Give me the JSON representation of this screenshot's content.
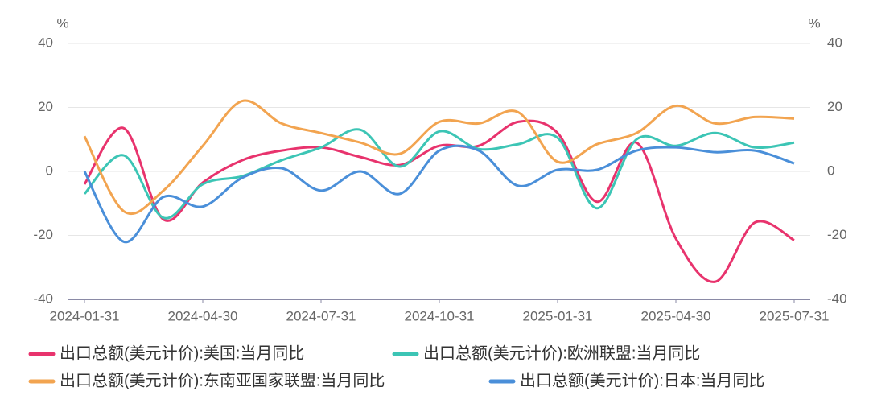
{
  "chart_data": {
    "type": "line",
    "y_unit": "%",
    "y2_unit": "%",
    "categories": [
      "2024-01-31",
      null,
      null,
      "2024-04-30",
      null,
      null,
      "2024-07-31",
      null,
      null,
      "2024-10-31",
      null,
      null,
      "2025-01-31",
      null,
      null,
      "2025-04-30",
      null,
      null,
      "2025-07-31"
    ],
    "ylim": [
      -40,
      40
    ],
    "yticks": [
      -40,
      -20,
      0,
      20,
      40
    ],
    "y2lim": [
      -40,
      40
    ],
    "y2ticks": [
      -40,
      -20,
      0,
      20,
      40
    ],
    "grid": true,
    "series": [
      {
        "name": "出口总额(美元计价):美国:当月同比",
        "color": "#e8336d",
        "values": [
          -4,
          13.5,
          -15,
          -3.5,
          3.5,
          6.5,
          7.5,
          4.5,
          2,
          8,
          8,
          15.5,
          12,
          -9.5,
          9,
          -21,
          -34.5,
          -16,
          -21.5
        ]
      },
      {
        "name": "出口总额(美元计价):欧洲联盟:当月同比",
        "color": "#3cc5b5",
        "values": [
          -7,
          5,
          -14.5,
          -4,
          -1.5,
          3.5,
          7.5,
          13,
          1.5,
          12.5,
          7,
          8.5,
          10.5,
          -11.5,
          10,
          8,
          12,
          7.5,
          9
        ]
      },
      {
        "name": "出口总额(美元计价):东南亚国家联盟:当月同比",
        "color": "#f2a450",
        "values": [
          11,
          -12.5,
          -6,
          8,
          22,
          15,
          12,
          9,
          5.5,
          15.5,
          15,
          18.5,
          3,
          8.5,
          12,
          20.5,
          15,
          17,
          16.5
        ]
      },
      {
        "name": "出口总额(美元计价):日本:当月同比",
        "color": "#4a8fd9",
        "values": [
          0,
          -22,
          -8,
          -11,
          -2,
          1,
          -6,
          0,
          -7,
          6.5,
          6.5,
          -4.5,
          0.5,
          0.5,
          6.5,
          7.5,
          6,
          6.5,
          2.5
        ]
      }
    ]
  }
}
